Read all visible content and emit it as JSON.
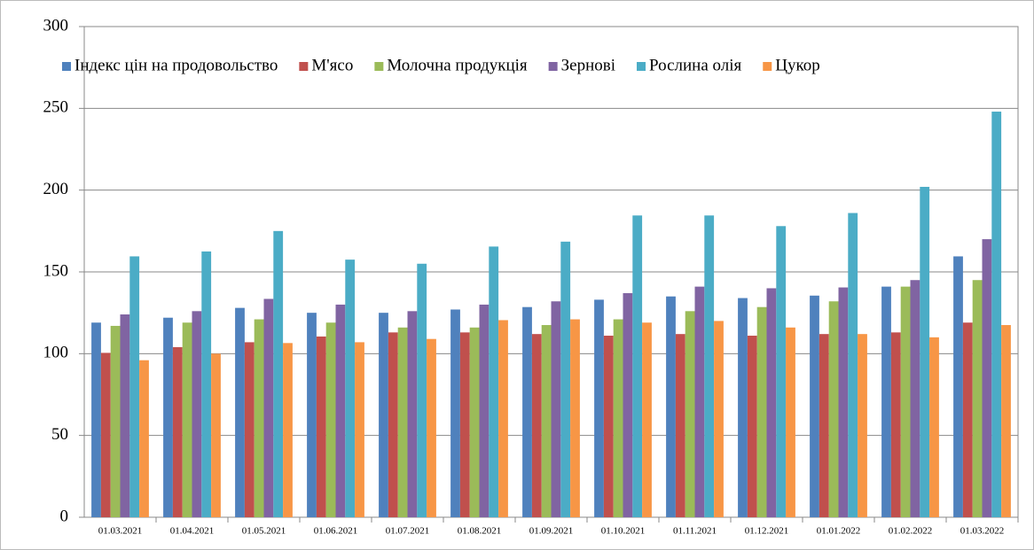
{
  "chart_data": {
    "type": "bar",
    "categories": [
      "01.03.2021",
      "01.04.2021",
      "01.05.2021",
      "01.06.2021",
      "01.07.2021",
      "01.08.2021",
      "01.09.2021",
      "01.10.2021",
      "01.11.2021",
      "01.12.2021",
      "01.01.2022",
      "01.02.2022",
      "01.03.2022"
    ],
    "series": [
      {
        "name": "Індекс цін на продовольство",
        "color": "#4f81bd",
        "values": [
          119,
          122,
          128,
          125,
          125,
          127,
          128.5,
          133,
          135,
          134,
          135.5,
          141,
          159.5
        ]
      },
      {
        "name": "М'ясо",
        "color": "#c0504d",
        "values": [
          100.5,
          104,
          107,
          110.5,
          113,
          113,
          112,
          111,
          112,
          111,
          112,
          113,
          119
        ]
      },
      {
        "name": "Молочна продукція",
        "color": "#9bbb59",
        "values": [
          117,
          119,
          121,
          119,
          116,
          116,
          117.5,
          121,
          126,
          128.5,
          132,
          141,
          145
        ]
      },
      {
        "name": "Зернові",
        "color": "#8064a2",
        "values": [
          124,
          126,
          133.5,
          130,
          126,
          130,
          132,
          137,
          141,
          140,
          140.5,
          145,
          170
        ]
      },
      {
        "name": "Рослина олія",
        "color": "#4bacc6",
        "values": [
          159.5,
          162.5,
          175,
          157.5,
          155,
          165.5,
          168.5,
          184.5,
          184.5,
          178,
          186,
          202,
          248
        ]
      },
      {
        "name": "Цукор",
        "color": "#f79646",
        "values": [
          96,
          100,
          106.5,
          107,
          109,
          120.5,
          121,
          119,
          120,
          116,
          112,
          110,
          117.5
        ]
      }
    ],
    "ylim": [
      0,
      300
    ],
    "yticks": [
      0,
      50,
      100,
      150,
      200,
      250,
      300
    ],
    "grid": true,
    "legend": "top"
  }
}
